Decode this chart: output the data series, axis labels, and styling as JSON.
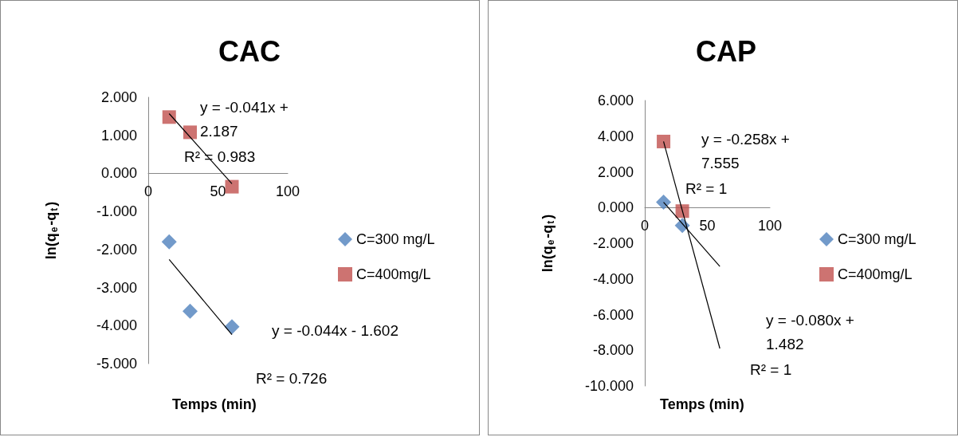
{
  "chart_data": [
    {
      "type": "scatter",
      "title": "CAC",
      "xlabel": "Temps (min)",
      "ylabel": "ln(q$_{e}$-q$_{t}$)",
      "legend": "right",
      "grid": false,
      "xlim": [
        0,
        100
      ],
      "xticks": [
        0,
        50,
        100
      ],
      "ylim": [
        -5,
        2
      ],
      "yticks": [
        {
          "value": -5,
          "label": "-5.000"
        },
        {
          "value": -4,
          "label": "-4.000"
        },
        {
          "value": -3,
          "label": "-3.000"
        },
        {
          "value": -2,
          "label": "-2.000"
        },
        {
          "value": -1,
          "label": "-1.000"
        },
        {
          "value": 0,
          "label": "0.000"
        },
        {
          "value": 1,
          "label": "1.000"
        },
        {
          "value": 2,
          "label": "2.000"
        }
      ],
      "series": [
        {
          "name": "C=300 mg/L",
          "color": "#4f81bd",
          "marker": "diamond",
          "x": [
            15,
            30,
            60
          ],
          "values": [
            -1.8,
            -3.62,
            -4.03
          ]
        },
        {
          "name": "C=400mg/L",
          "color": "#c0504d",
          "marker": "square",
          "x": [
            15,
            30,
            60
          ],
          "values": [
            1.48,
            1.08,
            -0.35
          ]
        },
        {
          "type": "line",
          "color": "#000000",
          "marker": "none",
          "x": [
            15,
            60
          ],
          "values": [
            1.57,
            -0.27
          ]
        },
        {
          "type": "line",
          "color": "#000000",
          "marker": "none",
          "x": [
            15,
            60
          ],
          "values": [
            -2.26,
            -4.24
          ]
        }
      ],
      "annotations": [
        "y = -0.041x + 2.187",
        "R² = 0.983",
        "y = -0.044x - 1.602",
        "R² = 0.726"
      ]
    },
    {
      "type": "scatter",
      "title": "CAP",
      "xlabel": "Temps (min)",
      "ylabel": "ln(q$_{e}$-q$_{t}$)",
      "legend": "right",
      "grid": false,
      "xlim": [
        0,
        100
      ],
      "xticks": [
        0,
        50,
        100
      ],
      "ylim": [
        -10,
        6
      ],
      "yticks": [
        {
          "value": -10,
          "label": "-10.000"
        },
        {
          "value": -8,
          "label": "-8.000"
        },
        {
          "value": -6,
          "label": "-6.000"
        },
        {
          "value": -4,
          "label": "-4.000"
        },
        {
          "value": -2,
          "label": "-2.000"
        },
        {
          "value": 0,
          "label": "0.000"
        },
        {
          "value": 2,
          "label": "2.000"
        },
        {
          "value": 4,
          "label": "4.000"
        },
        {
          "value": 6,
          "label": "6.000"
        }
      ],
      "series": [
        {
          "name": "C=300 mg/L",
          "color": "#4f81bd",
          "marker": "diamond",
          "x": [
            15,
            30
          ],
          "values": [
            0.3,
            -1.0
          ]
        },
        {
          "name": "C=400mg/L",
          "color": "#c0504d",
          "marker": "square",
          "x": [
            15,
            30
          ],
          "values": [
            3.7,
            -0.2
          ]
        },
        {
          "type": "line",
          "color": "#000000",
          "marker": "none",
          "x": [
            15,
            60
          ],
          "values": [
            3.7,
            -7.9
          ]
        },
        {
          "type": "line",
          "color": "#000000",
          "marker": "none",
          "x": [
            15,
            60
          ],
          "values": [
            0.3,
            -3.3
          ]
        }
      ],
      "annotations": [
        "y = -0.258x + 7.555",
        "R² = 1",
        "y = -0.080x + 1.482",
        "R² = 1"
      ]
    }
  ]
}
